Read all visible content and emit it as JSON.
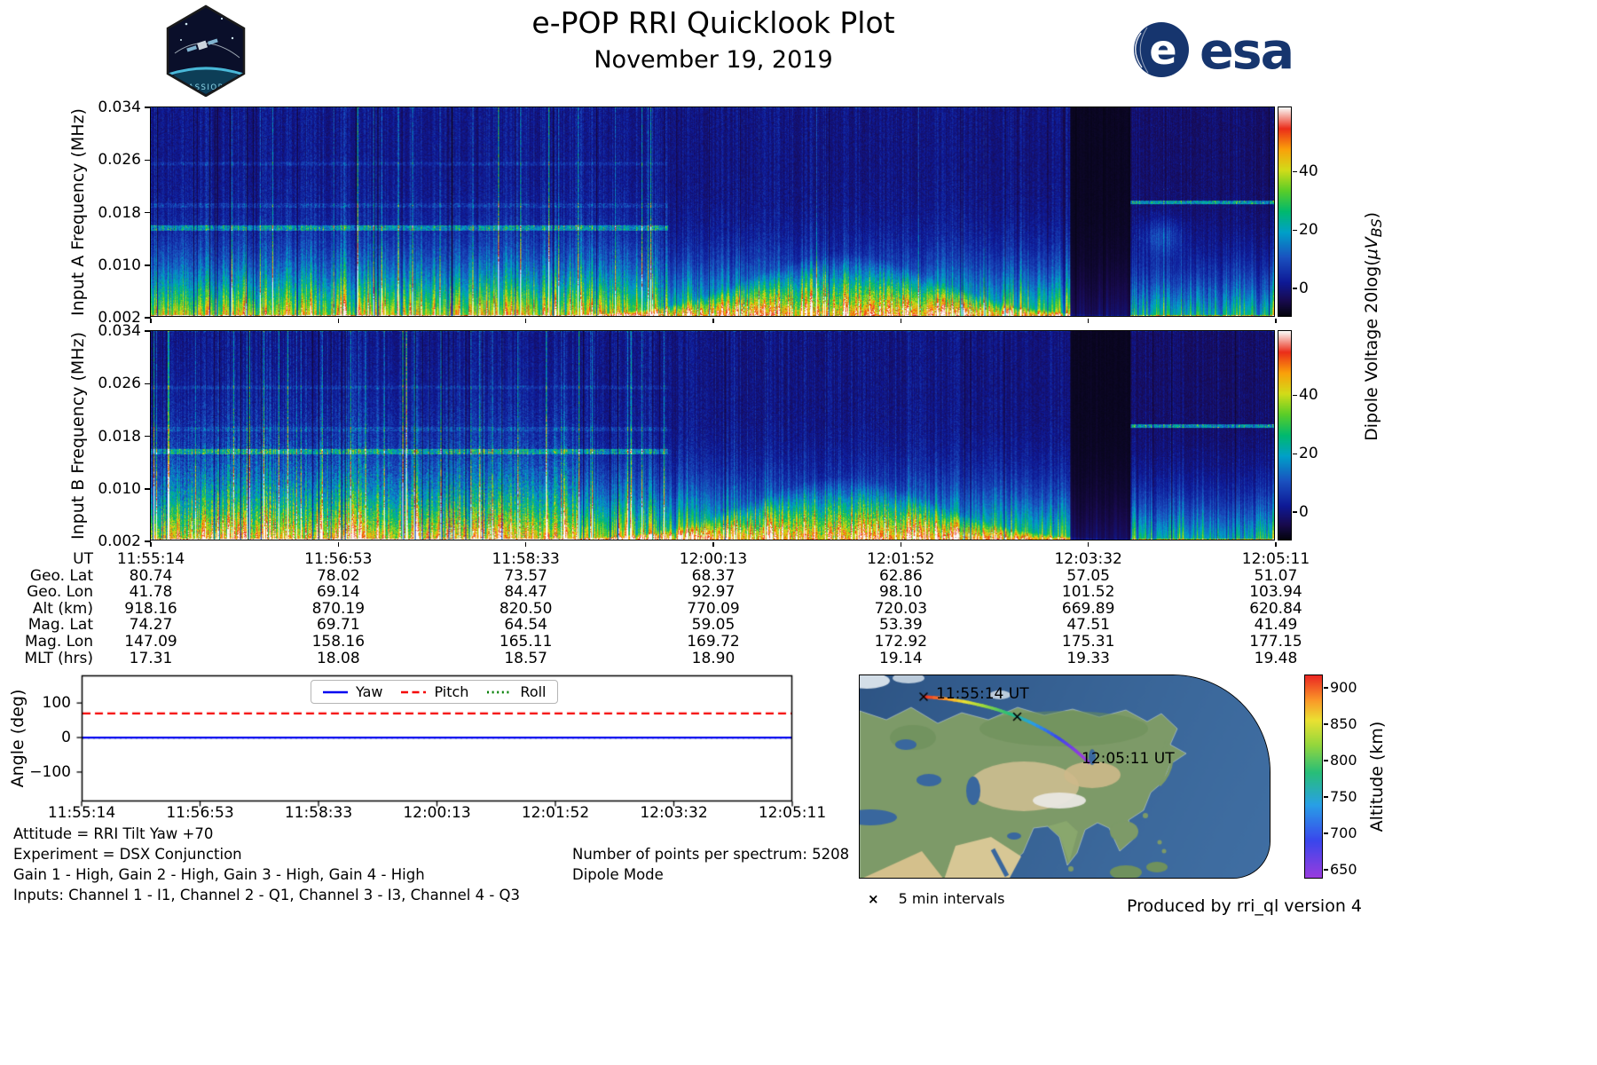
{
  "header": {
    "title": "e-POP RRI Quicklook Plot",
    "date": "November 19, 2019",
    "cassiope_badge_text": "CASSIOPE",
    "esa_wordmark": "esa"
  },
  "colors": {
    "yaw": "#0000f0",
    "pitch": "#f50000",
    "roll": "#007f00",
    "ocean": "#39679e",
    "esa_blue": "#16356e"
  },
  "chart_data": [
    {
      "type": "heatmap",
      "name": "input_a_spectrogram",
      "ylabel": "Input A Frequency (MHz)",
      "ylim": [
        0.002,
        0.034
      ],
      "y_ticks": [
        0.034,
        0.026,
        0.018,
        0.01,
        0.002
      ],
      "x_ticks_ut": [
        "11:55:14",
        "11:56:53",
        "11:58:33",
        "12:00:13",
        "12:01:52",
        "12:03:32",
        "12:05:11"
      ],
      "colorbar": {
        "label": "Dipole Voltage 20log(μV_BS)",
        "ticks": [
          40,
          20,
          0
        ],
        "range": [
          -10,
          62
        ],
        "colormap": "nipy_spectral"
      },
      "note": "Broadband noise spectrogram; per-pixel values not resolvable from image"
    },
    {
      "type": "heatmap",
      "name": "input_b_spectrogram",
      "ylabel": "Input B Frequency (MHz)",
      "ylim": [
        0.002,
        0.034
      ],
      "y_ticks": [
        0.034,
        0.026,
        0.018,
        0.01,
        0.002
      ],
      "x_ticks_ut": [
        "11:55:14",
        "11:56:53",
        "11:58:33",
        "12:00:13",
        "12:01:52",
        "12:03:32",
        "12:05:11"
      ],
      "colorbar": {
        "label": "Dipole Voltage 20log(μV_BS)",
        "ticks": [
          40,
          20,
          0
        ],
        "range": [
          -10,
          62
        ],
        "colormap": "nipy_spectral"
      }
    },
    {
      "type": "table",
      "name": "ephemeris",
      "rows": [
        {
          "label": "UT",
          "values": [
            "11:55:14",
            "11:56:53",
            "11:58:33",
            "12:00:13",
            "12:01:52",
            "12:03:32",
            "12:05:11"
          ]
        },
        {
          "label": "Geo. Lat",
          "values": [
            "80.74",
            "78.02",
            "73.57",
            "68.37",
            "62.86",
            "57.05",
            "51.07"
          ]
        },
        {
          "label": "Geo. Lon",
          "values": [
            "41.78",
            "69.14",
            "84.47",
            "92.97",
            "98.10",
            "101.52",
            "103.94"
          ]
        },
        {
          "label": "Alt (km)",
          "values": [
            "918.16",
            "870.19",
            "820.50",
            "770.09",
            "720.03",
            "669.89",
            "620.84"
          ]
        },
        {
          "label": "Mag. Lat",
          "values": [
            "74.27",
            "69.71",
            "64.54",
            "59.05",
            "53.39",
            "47.51",
            "41.49"
          ]
        },
        {
          "label": "Mag. Lon",
          "values": [
            "147.09",
            "158.16",
            "165.11",
            "169.72",
            "172.92",
            "175.31",
            "177.15"
          ]
        },
        {
          "label": "MLT (hrs)",
          "values": [
            "17.31",
            "18.08",
            "18.57",
            "18.90",
            "19.14",
            "19.33",
            "19.48"
          ]
        }
      ]
    },
    {
      "type": "line",
      "name": "attitude_angles",
      "ylabel": "Angle (deg)",
      "ylim": [
        -185,
        180
      ],
      "y_ticks": [
        100,
        0,
        -100
      ],
      "x_ticks": [
        "11:55:14",
        "11:56:53",
        "11:58:33",
        "12:00:13",
        "12:01:52",
        "12:03:32",
        "12:05:11"
      ],
      "series": [
        {
          "name": "Yaw",
          "style": "solid",
          "color": "#0000f0",
          "values": [
            0,
            0,
            0,
            0,
            0,
            0,
            0
          ]
        },
        {
          "name": "Pitch",
          "style": "dashed",
          "color": "#f50000",
          "values": [
            70,
            70,
            70,
            70,
            70,
            70,
            70
          ]
        },
        {
          "name": "Roll",
          "style": "dotted",
          "color": "#007f00",
          "values": [
            0,
            0,
            0,
            0,
            0,
            0,
            0
          ]
        }
      ],
      "legend_position": "upper center"
    },
    {
      "type": "scatter",
      "name": "ground_track_map",
      "start": {
        "ut": "11:55:14",
        "lat": 80.74,
        "lon": 41.78,
        "alt_km": 918.16
      },
      "end": {
        "ut": "12:05:11",
        "lat": 51.07,
        "lon": 103.94,
        "alt_km": 620.84
      },
      "marker_note": "5 min intervals",
      "colorbar": {
        "label": "Altitude (km)",
        "ticks": [
          900,
          850,
          800,
          750,
          700,
          650
        ],
        "range": [
          638,
          918
        ],
        "colormap": "rainbow"
      }
    }
  ],
  "spectrogram_labels": {
    "colorbar_text": "Dipole Voltage 20",
    "colorbar_log": "log(",
    "colorbar_uv": "μV",
    "colorbar_sub": "BS",
    "colorbar_end": ")"
  },
  "annotations": {
    "attitude": "Attitude = RRI Tilt Yaw +70",
    "experiment": "Experiment = DSX Conjunction",
    "gains": "Gain 1 - High, Gain 2 - High, Gain 3 - High, Gain 4 - High",
    "inputs": "Inputs: Channel 1 - I1, Channel 2 - Q1, Channel 3 - I3, Channel 4 - Q3",
    "points_per_spectrum": "Number of points per spectrum: 5208",
    "mode": "Dipole Mode"
  },
  "map": {
    "start_label": "11:55:14 UT",
    "end_label": "12:05:11 UT",
    "interval_marker": "×",
    "interval_label": "5 min intervals",
    "altitude_label": "Altitude (km)"
  },
  "footer": {
    "credit": "Produced by rri_ql version 4"
  }
}
